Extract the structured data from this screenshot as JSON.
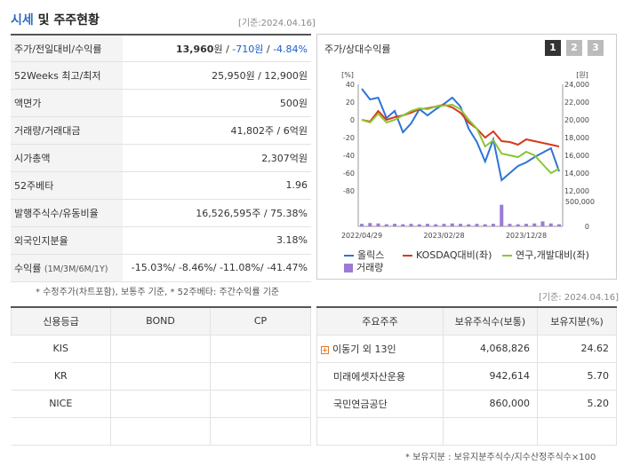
{
  "header": {
    "title_hl": "시세",
    "title_rest": "및 주주현황",
    "base_date": "[기준:2024.04.16]"
  },
  "quote": {
    "rows": [
      {
        "label": "주가/전일대비/수익률",
        "v1": "13,960",
        "u1": "원",
        "v2": "-710원",
        "v3": "-4.84%"
      },
      {
        "label": "52Weeks 최고/최저",
        "value": "25,950원 / 12,900원"
      },
      {
        "label": "액면가",
        "value": "500원"
      },
      {
        "label": "거래량/거래대금",
        "value": "41,802주 / 6억원"
      },
      {
        "label": "시가총액",
        "value": "2,307억원"
      },
      {
        "label": "52주베타",
        "value": "1.96"
      },
      {
        "label": "발행주식수/유동비율",
        "value": "16,526,595주 / 75.38%"
      },
      {
        "label": "외국인지분율",
        "value": "3.18%"
      },
      {
        "label": "수익률",
        "sub": "(1M/3M/6M/1Y)",
        "value": "-15.03%/ -8.46%/ -11.08%/ -41.47%"
      }
    ],
    "note": "* 수정주가(차트포함), 보통주 기준, * 52주베타: 주간수익률 기준"
  },
  "chart_panel": {
    "title": "주가/상대수익률",
    "buttons": [
      "1",
      "2",
      "3"
    ],
    "left_unit": "[%]",
    "right_unit": "[원]",
    "left_ticks": [
      "40",
      "20",
      "0",
      "-20",
      "-40",
      "-60",
      "-80"
    ],
    "right_ticks": [
      "24,000",
      "22,000",
      "20,000",
      "18,000",
      "16,000",
      "14,000",
      "12,000"
    ],
    "vol_ticks": [
      "500,000",
      "0"
    ],
    "x_ticks": [
      "2022/04/29",
      "2023/02/28",
      "2023/12/28"
    ],
    "legend": [
      "올릭스",
      "KOSDAQ대비(좌)",
      "연구,개발대비(좌)",
      "거래량"
    ]
  },
  "chart_data": {
    "type": "line",
    "x": [
      "2022/04",
      "2022/05",
      "2022/06",
      "2022/07",
      "2022/08",
      "2022/09",
      "2022/10",
      "2022/11",
      "2022/12",
      "2023/01",
      "2023/02",
      "2023/03",
      "2023/04",
      "2023/05",
      "2023/06",
      "2023/07",
      "2023/08",
      "2023/09",
      "2023/10",
      "2023/11",
      "2023/12",
      "2024/01",
      "2024/02",
      "2024/03",
      "2024/04"
    ],
    "series": [
      {
        "name": "올릭스",
        "axis": "right",
        "color": "#2f73d8",
        "values": [
          23500,
          22300,
          22500,
          20200,
          21000,
          18600,
          19600,
          21200,
          20500,
          21200,
          21800,
          22500,
          21500,
          19000,
          17500,
          15300,
          17800,
          13200,
          14000,
          14800,
          15200,
          15800,
          16300,
          16800,
          14200
        ]
      },
      {
        "name": "KOSDAQ대비(좌)",
        "axis": "left",
        "color": "#d63a1e",
        "values": [
          0,
          -2,
          10,
          0,
          3,
          5,
          8,
          12,
          13,
          15,
          17,
          14,
          8,
          -3,
          -10,
          -20,
          -13,
          -24,
          -25,
          -28,
          -22,
          -24,
          -26,
          -28,
          -30
        ]
      },
      {
        "name": "연구,개발대비(좌)",
        "axis": "left",
        "color": "#8bc634",
        "values": [
          0,
          -3,
          7,
          -3,
          0,
          5,
          10,
          13,
          12,
          15,
          16,
          17,
          12,
          0,
          -10,
          -30,
          -23,
          -38,
          -40,
          -42,
          -36,
          -40,
          -50,
          -60,
          -55
        ]
      }
    ],
    "volume": {
      "name": "거래량",
      "color": "#9b7ad6",
      "values": [
        60000,
        80000,
        70000,
        50000,
        60000,
        50000,
        60000,
        50000,
        60000,
        50000,
        60000,
        70000,
        60000,
        50000,
        60000,
        50000,
        60000,
        520000,
        60000,
        50000,
        60000,
        70000,
        120000,
        70000,
        50000
      ]
    },
    "ylim_left": [
      -80,
      40
    ],
    "ylim_right": [
      12000,
      24000
    ]
  },
  "credit": {
    "headers": [
      "신용등급",
      "BOND",
      "CP"
    ],
    "rows": [
      [
        "KIS",
        "",
        ""
      ],
      [
        "KR",
        "",
        ""
      ],
      [
        "NICE",
        "",
        ""
      ],
      [
        "",
        "",
        ""
      ]
    ]
  },
  "holders": {
    "base_date": "[기준: 2024.04.16]",
    "headers": [
      "주요주주",
      "보유주식수(보통)",
      "보유지분(%)"
    ],
    "rows": [
      {
        "name": "이동기 외 13인",
        "shares": "4,068,826",
        "pct": "24.62"
      },
      {
        "name": "미래에셋자산운용",
        "shares": "942,614",
        "pct": "5.70"
      },
      {
        "name": "국민연금공단",
        "shares": "860,000",
        "pct": "5.20"
      },
      {
        "name": "",
        "shares": "",
        "pct": ""
      }
    ],
    "note": "* 보유지분 : 보유지분주식수/지수산정주식수×100"
  }
}
